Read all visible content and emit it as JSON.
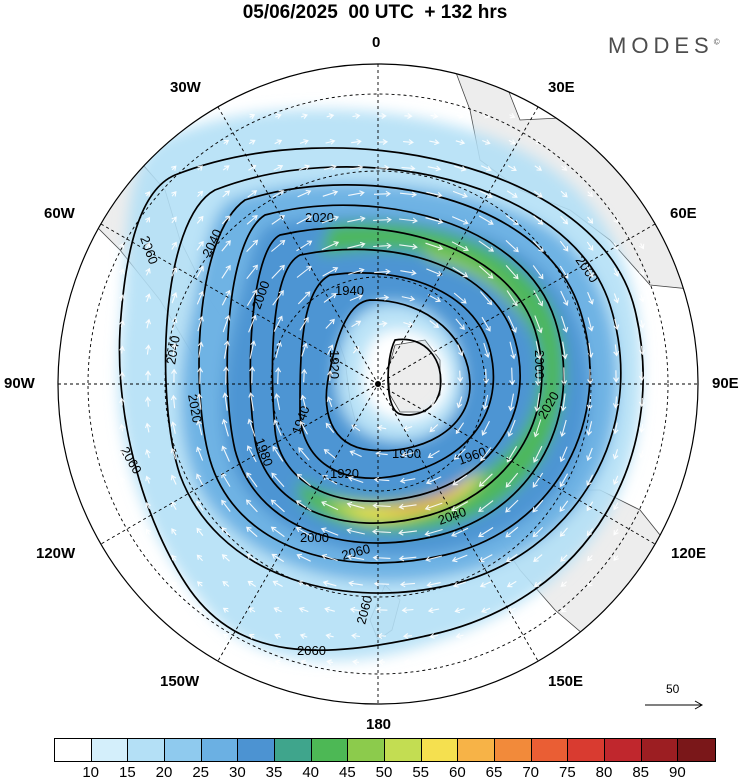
{
  "title": "05/06/2025  00 UTC  + 132 hrs",
  "brand": {
    "name": "MODES",
    "mark": "©"
  },
  "longitude_labels": {
    "lon_0": "0",
    "lon_30e": "30E",
    "lon_60e": "60E",
    "lon_90e": "90E",
    "lon_120e": "120E",
    "lon_150e": "150E",
    "lon_180": "180",
    "lon_150w": "150W",
    "lon_120w": "120W",
    "lon_90w": "90W",
    "lon_60w": "60W",
    "lon_30w": "30W"
  },
  "contour_labels": [
    "1900",
    "1920",
    "1920",
    "1940",
    "1940",
    "1960",
    "1980",
    "2000",
    "2000",
    "2000",
    "2020",
    "2020",
    "2020",
    "2040",
    "2040",
    "2040",
    "2060",
    "2060",
    "2060",
    "2060",
    "2060"
  ],
  "vector_reference": {
    "label": "50"
  },
  "colorbar": {
    "labels": [
      "10",
      "15",
      "20",
      "25",
      "30",
      "35",
      "40",
      "45",
      "50",
      "55",
      "60",
      "65",
      "70",
      "75",
      "80",
      "85",
      "90"
    ],
    "colors": [
      "#ffffff",
      "#d4effb",
      "#b4e0f6",
      "#8fcaee",
      "#6bb0e3",
      "#4c93d2",
      "#3fa58c",
      "#4db855",
      "#8ccb4c",
      "#c3dd52",
      "#f5e04f",
      "#f7b347",
      "#f28a3a",
      "#ea5e34",
      "#d93b30",
      "#c0272d",
      "#9c1e22",
      "#7a1719"
    ]
  },
  "colors": {
    "land": "#ededed",
    "coastline": "#444444",
    "contour": "#000000",
    "wind_arrow": "#ffffff"
  }
}
